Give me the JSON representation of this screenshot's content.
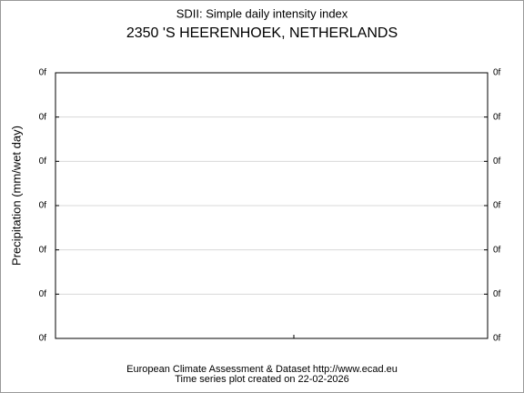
{
  "chart_data": {
    "type": "line",
    "title": "SDII: Simple daily intensity index",
    "subtitle": "2350 'S HEERENHOEK, NETHERLANDS",
    "ylabel": "Precipitation (mm/wet day)",
    "ytick_labels": [
      "0f",
      "0f",
      "0f",
      "0f",
      "0f",
      "0f",
      "0f"
    ],
    "grid": true,
    "footer": [
      "European Climate Assessment & Dataset  http://www.ecad.eu",
      "Time series plot created on 22-02-2026"
    ]
  }
}
